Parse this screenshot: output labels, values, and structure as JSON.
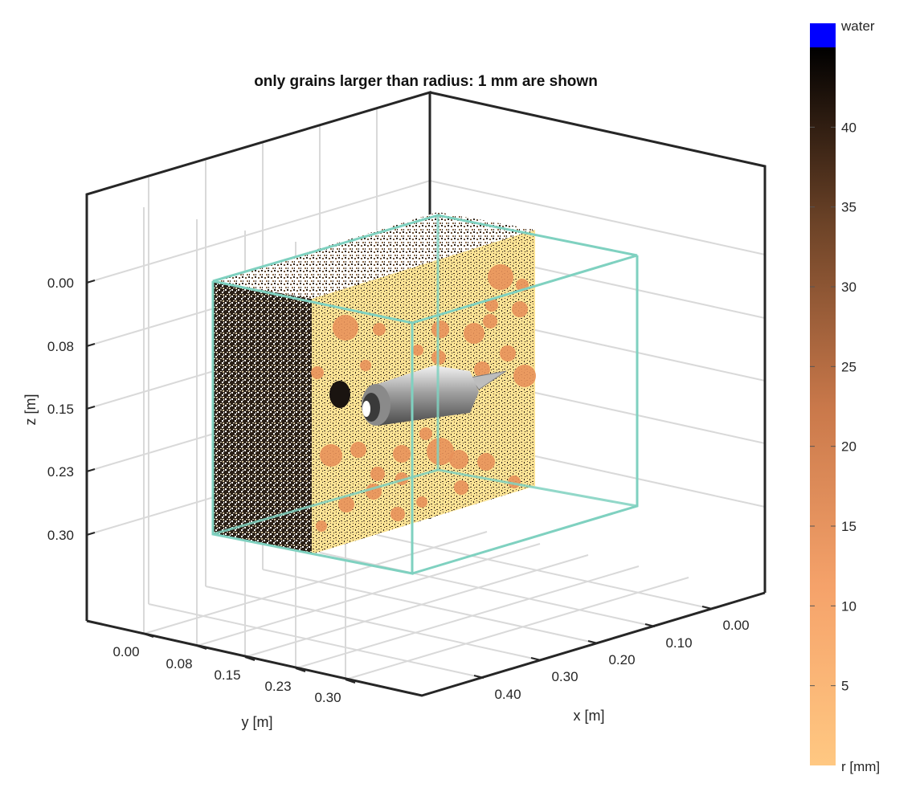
{
  "chart_data": {
    "type": "scatter",
    "title": "only grains larger than radius: 1 mm are shown",
    "xlabel": "x [m]",
    "ylabel": "y [m]",
    "zlabel": "z [m]",
    "x_ticks": [
      "0.00",
      "0.10",
      "0.20",
      "0.30",
      "0.40"
    ],
    "y_ticks": [
      "0.00",
      "0.08",
      "0.15",
      "0.23",
      "0.30"
    ],
    "z_ticks": [
      "0.00",
      "0.08",
      "0.15",
      "0.23",
      "0.30"
    ],
    "z_direction": "reversed",
    "grid": true,
    "colorbar": {
      "label": "r [mm]",
      "top_label": "water",
      "ticks": [
        5,
        10,
        15,
        20,
        25,
        30,
        35,
        40
      ],
      "range": [
        0,
        45
      ],
      "colormap": [
        "#ffc882",
        "#e8915a",
        "#a8643c",
        "#5e3a22",
        "#000000"
      ],
      "water_color": "#0000ff"
    },
    "colors": {
      "domain_box": "#7fd1c0",
      "grain_light": "#fde9a0",
      "grain_orange": "#e8915a",
      "tool": "#9a9a9a"
    }
  }
}
